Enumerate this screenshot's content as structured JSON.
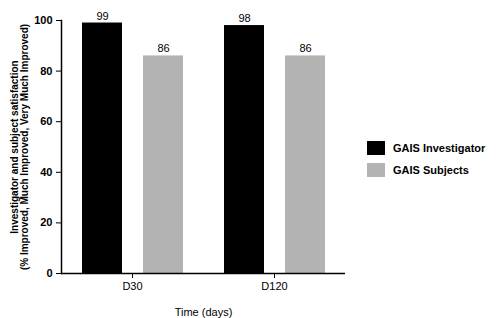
{
  "chart_data": {
    "type": "bar",
    "x_label": "Time (days)",
    "y_label": "Investigator and subject satisfaction\n(% Improved, Much Improved, Very Much Improved)",
    "categories": [
      "D30",
      "D120"
    ],
    "series": [
      {
        "name": "GAIS Investigator",
        "color": "#000000",
        "values": [
          99,
          98
        ]
      },
      {
        "name": "GAIS Subjects",
        "color": "#b3b3b3",
        "values": [
          86,
          86
        ]
      }
    ],
    "ylim": [
      0,
      100
    ],
    "yticks": [
      0,
      20,
      40,
      60,
      80,
      100
    ],
    "data_labels": true,
    "legend": "right",
    "grid": false
  }
}
